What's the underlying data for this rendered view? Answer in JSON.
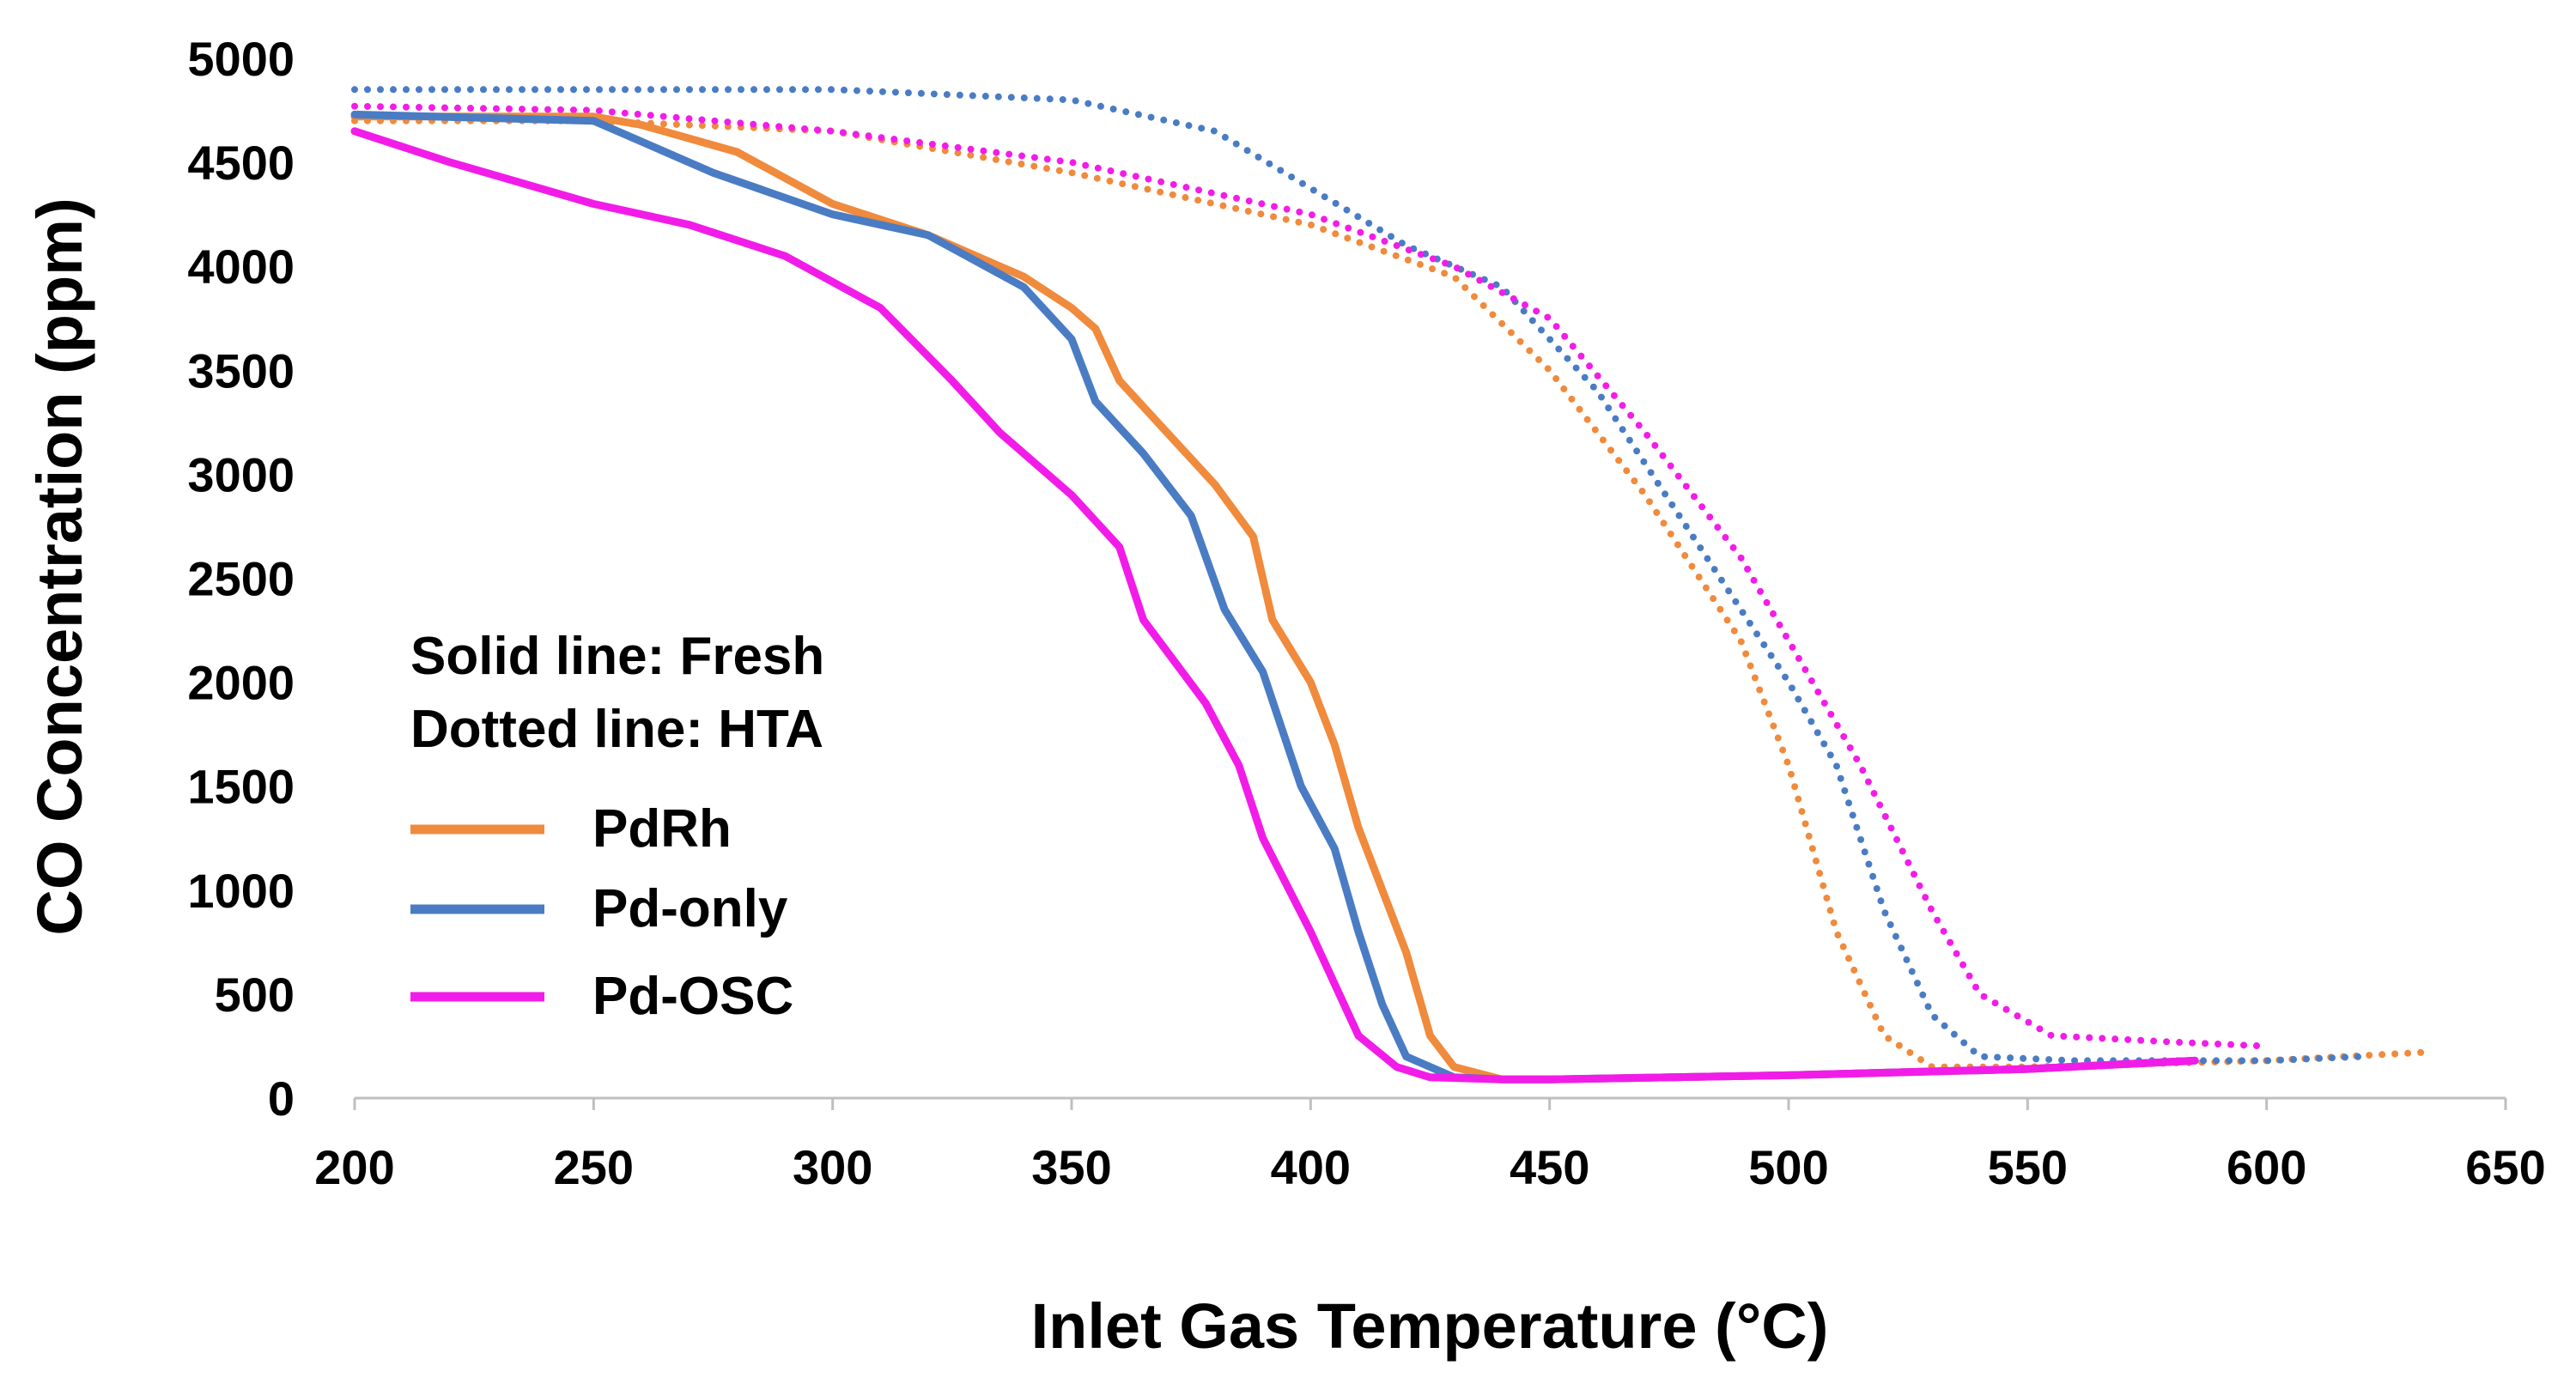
{
  "chart_data": {
    "type": "line",
    "title": "",
    "xlabel": "Inlet Gas Temperature (°C)",
    "ylabel": "CO Concentration  (ppm)",
    "xlim": [
      200,
      650
    ],
    "ylim": [
      0,
      5000
    ],
    "x_ticks": [
      "200",
      "250",
      "300",
      "350",
      "400",
      "450",
      "500",
      "550",
      "600",
      "650"
    ],
    "y_ticks": [
      "0",
      "500",
      "1000",
      "1500",
      "2000",
      "2500",
      "3000",
      "3500",
      "4000",
      "4500",
      "5000"
    ],
    "grid": false,
    "legend_notes": [
      "Solid line: Fresh",
      "Dotted line: HTA"
    ],
    "legend_placement": "center-left",
    "colors": {
      "PdRh": "#F08A3C",
      "Pd-only": "#4A7CC4",
      "Pd-OSC": "#F21CE8"
    },
    "series": [
      {
        "name": "PdRh",
        "style": "solid",
        "x": [
          200,
          250,
          260,
          280,
          300,
          320,
          340,
          350,
          355,
          360,
          370,
          380,
          388,
          392,
          400,
          405,
          410,
          420,
          425,
          430,
          440,
          450,
          500,
          550,
          585
        ],
        "y": [
          4720,
          4720,
          4680,
          4550,
          4300,
          4150,
          3950,
          3800,
          3700,
          3450,
          3200,
          2950,
          2700,
          2300,
          2000,
          1700,
          1300,
          700,
          300,
          150,
          90,
          90,
          110,
          140,
          180
        ]
      },
      {
        "name": "Pd-only",
        "style": "solid",
        "x": [
          200,
          250,
          260,
          275,
          300,
          320,
          340,
          350,
          355,
          365,
          375,
          382,
          390,
          398,
          405,
          410,
          415,
          420,
          430,
          440,
          450,
          500,
          550,
          585
        ],
        "y": [
          4730,
          4700,
          4600,
          4450,
          4250,
          4150,
          3900,
          3650,
          3350,
          3100,
          2800,
          2350,
          2050,
          1500,
          1200,
          800,
          450,
          200,
          100,
          90,
          90,
          110,
          140,
          180
        ]
      },
      {
        "name": "Pd-OSC",
        "style": "solid",
        "x": [
          200,
          220,
          250,
          270,
          290,
          310,
          325,
          335,
          350,
          360,
          365,
          378,
          385,
          390,
          400,
          410,
          418,
          425,
          440,
          450,
          500,
          550,
          585
        ],
        "y": [
          4650,
          4500,
          4300,
          4200,
          4050,
          3800,
          3450,
          3200,
          2900,
          2650,
          2300,
          1900,
          1600,
          1250,
          800,
          300,
          150,
          100,
          90,
          90,
          110,
          140,
          180
        ]
      },
      {
        "name": "PdRh (HTA)",
        "style": "dotted",
        "x": [
          200,
          250,
          300,
          350,
          400,
          430,
          450,
          470,
          490,
          500,
          510,
          520,
          530,
          550,
          600,
          633
        ],
        "y": [
          4700,
          4700,
          4650,
          4450,
          4200,
          3950,
          3500,
          2900,
          2200,
          1600,
          800,
          300,
          150,
          150,
          180,
          220
        ]
      },
      {
        "name": "Pd-only (HTA)",
        "style": "dotted",
        "x": [
          200,
          250,
          300,
          350,
          380,
          420,
          440,
          460,
          480,
          500,
          510,
          520,
          530,
          540,
          560,
          600,
          620
        ],
        "y": [
          4850,
          4850,
          4850,
          4800,
          4650,
          4100,
          3900,
          3400,
          2700,
          2000,
          1600,
          900,
          400,
          200,
          180,
          180,
          200
        ]
      },
      {
        "name": "Pd-OSC (HTA)",
        "style": "dotted",
        "x": [
          200,
          250,
          300,
          350,
          400,
          430,
          450,
          470,
          490,
          505,
          515,
          530,
          540,
          555,
          580,
          600
        ],
        "y": [
          4770,
          4750,
          4650,
          4500,
          4250,
          4000,
          3750,
          3200,
          2600,
          2000,
          1600,
          900,
          500,
          300,
          270,
          250
        ]
      }
    ]
  }
}
